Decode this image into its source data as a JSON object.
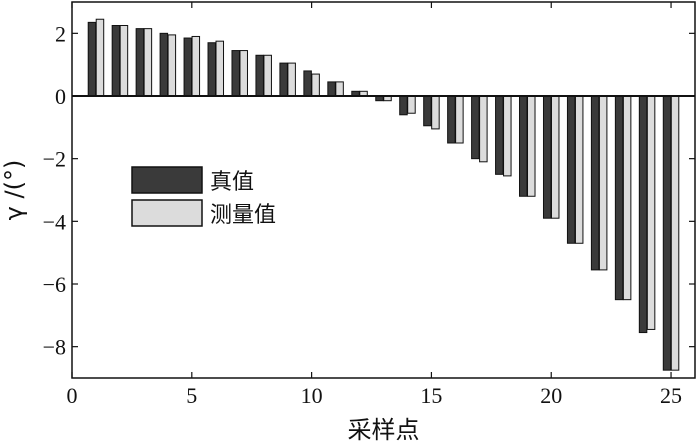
{
  "chart_data": {
    "type": "bar",
    "title": "",
    "xlabel": "采样点",
    "ylabel": "γ /(°)",
    "xlim": [
      0,
      26
    ],
    "ylim": [
      -9,
      3
    ],
    "xticks": [
      0,
      5,
      10,
      15,
      20,
      25
    ],
    "yticks": [
      2,
      0,
      -2,
      -4,
      -6,
      -8
    ],
    "ytick_labels": [
      "2",
      "0",
      "−2",
      "−4",
      "−6",
      "−8"
    ],
    "grid": false,
    "legend_position": "middle-left",
    "categories": [
      1,
      2,
      3,
      4,
      5,
      6,
      7,
      8,
      9,
      10,
      11,
      12,
      13,
      14,
      15,
      16,
      17,
      18,
      19,
      20,
      21,
      22,
      23,
      24,
      25
    ],
    "series": [
      {
        "name": "真值",
        "color": "#3a3a3a",
        "values": [
          2.35,
          2.25,
          2.15,
          2.0,
          1.85,
          1.7,
          1.45,
          1.3,
          1.05,
          0.8,
          0.45,
          0.15,
          -0.15,
          -0.6,
          -0.95,
          -1.5,
          -2.0,
          -2.5,
          -3.2,
          -3.9,
          -4.7,
          -5.55,
          -6.5,
          -7.55,
          -8.75
        ]
      },
      {
        "name": "测量值",
        "color": "#dcdcdc",
        "values": [
          2.45,
          2.25,
          2.15,
          1.95,
          1.9,
          1.75,
          1.45,
          1.3,
          1.05,
          0.7,
          0.45,
          0.15,
          -0.15,
          -0.55,
          -1.05,
          -1.5,
          -2.1,
          -2.55,
          -3.2,
          -3.9,
          -4.7,
          -5.55,
          -6.5,
          -7.45,
          -8.75
        ]
      }
    ]
  }
}
